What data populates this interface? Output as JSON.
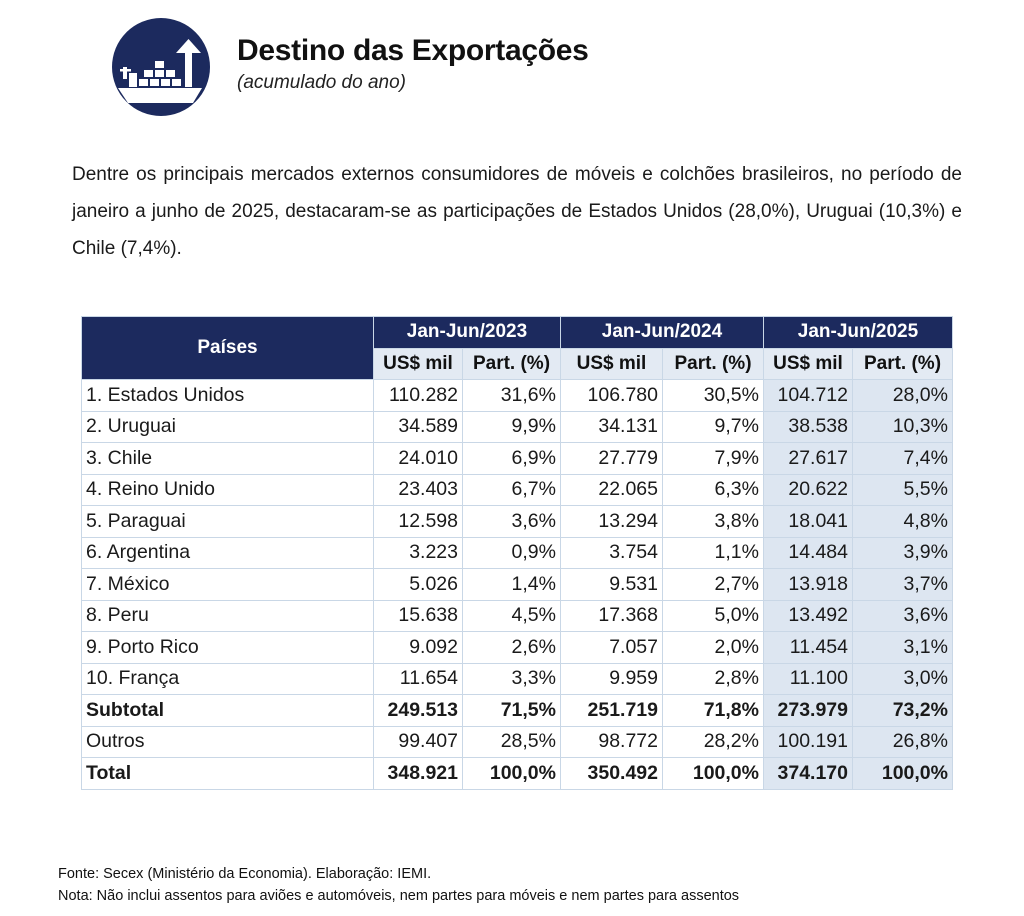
{
  "header": {
    "icon": "cargo-ship-export-icon",
    "title": "Destino das Exportações",
    "subtitle": "(acumulado do ano)"
  },
  "intro": "Dentre os principais mercados externos consumidores de móveis e colchões brasileiros, no período de janeiro a junho de 2025, destacaram-se as participações de Estados Unidos (28,0%), Uruguai (10,3%) e Chile (7,4%).",
  "table": {
    "col_country": "Países",
    "periods": [
      "Jan-Jun/2023",
      "Jan-Jun/2024",
      "Jan-Jun/2025"
    ],
    "sub_value": "US$ mil",
    "sub_share": "Part. (%)",
    "rows": [
      {
        "country": "1. Estados Unidos",
        "v2023": "110.282",
        "p2023": "31,6%",
        "v2024": "106.780",
        "p2024": "30,5%",
        "v2025": "104.712",
        "p2025": "28,0%"
      },
      {
        "country": "2. Uruguai",
        "v2023": "34.589",
        "p2023": "9,9%",
        "v2024": "34.131",
        "p2024": "9,7%",
        "v2025": "38.538",
        "p2025": "10,3%"
      },
      {
        "country": "3. Chile",
        "v2023": "24.010",
        "p2023": "6,9%",
        "v2024": "27.779",
        "p2024": "7,9%",
        "v2025": "27.617",
        "p2025": "7,4%"
      },
      {
        "country": "4. Reino Unido",
        "v2023": "23.403",
        "p2023": "6,7%",
        "v2024": "22.065",
        "p2024": "6,3%",
        "v2025": "20.622",
        "p2025": "5,5%"
      },
      {
        "country": "5. Paraguai",
        "v2023": "12.598",
        "p2023": "3,6%",
        "v2024": "13.294",
        "p2024": "3,8%",
        "v2025": "18.041",
        "p2025": "4,8%"
      },
      {
        "country": "6. Argentina",
        "v2023": "3.223",
        "p2023": "0,9%",
        "v2024": "3.754",
        "p2024": "1,1%",
        "v2025": "14.484",
        "p2025": "3,9%"
      },
      {
        "country": "7. México",
        "v2023": "5.026",
        "p2023": "1,4%",
        "v2024": "9.531",
        "p2024": "2,7%",
        "v2025": "13.918",
        "p2025": "3,7%"
      },
      {
        "country": "8. Peru",
        "v2023": "15.638",
        "p2023": "4,5%",
        "v2024": "17.368",
        "p2024": "5,0%",
        "v2025": "13.492",
        "p2025": "3,6%"
      },
      {
        "country": "9. Porto Rico",
        "v2023": "9.092",
        "p2023": "2,6%",
        "v2024": "7.057",
        "p2024": "2,0%",
        "v2025": "11.454",
        "p2025": "3,1%"
      },
      {
        "country": "10. França",
        "v2023": "11.654",
        "p2023": "3,3%",
        "v2024": "9.959",
        "p2024": "2,8%",
        "v2025": "11.100",
        "p2025": "3,0%"
      }
    ],
    "subtotal": {
      "country": "Subtotal",
      "v2023": "249.513",
      "p2023": "71,5%",
      "v2024": "251.719",
      "p2024": "71,8%",
      "v2025": "273.979",
      "p2025": "73,2%"
    },
    "outros": {
      "country": "Outros",
      "v2023": "99.407",
      "p2023": "28,5%",
      "v2024": "98.772",
      "p2024": "28,2%",
      "v2025": "100.191",
      "p2025": "26,8%"
    },
    "total": {
      "country": "Total",
      "v2023": "348.921",
      "p2023": "100,0%",
      "v2024": "350.492",
      "p2024": "100,0%",
      "v2025": "374.170",
      "p2025": "100,0%"
    }
  },
  "footer": {
    "source": "Fonte: Secex (Ministério da Economia). Elaboração: IEMI.",
    "note": "Nota: Não inclui assentos para aviões e automóveis, nem partes para móveis e nem partes para assentos"
  },
  "colors": {
    "header_dark": "#1c2a5e",
    "subheader": "#e3eaf3",
    "shade": "#dde6f1",
    "border": "#c9d7e6"
  }
}
